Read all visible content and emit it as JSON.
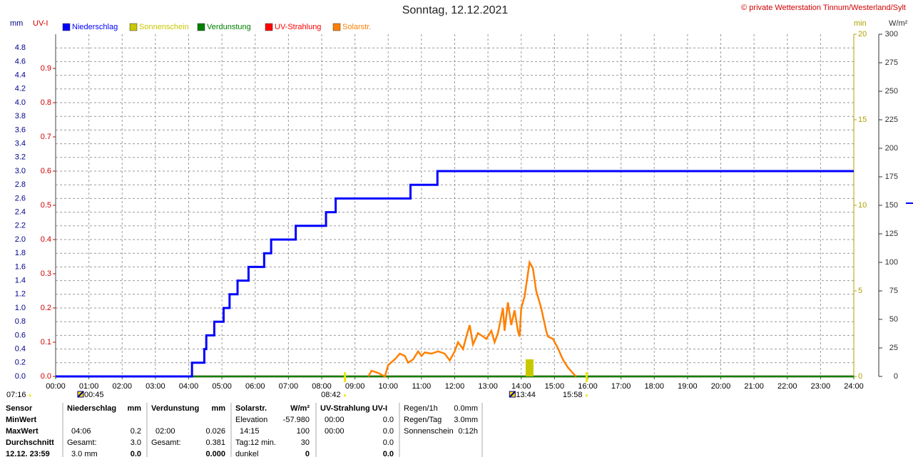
{
  "chart_data": {
    "type": "line",
    "title": "Sonntag, 12.12.2021",
    "copyright": "© private Wetterstation Tinnum/Westerland/Sylt",
    "xlim": [
      0,
      24
    ],
    "xticks": [
      {
        "value": 0,
        "label": "00:00"
      },
      {
        "value": 1,
        "label": "01:00"
      },
      {
        "value": 2,
        "label": "02:00"
      },
      {
        "value": 3,
        "label": "03:00"
      },
      {
        "value": 4,
        "label": "04:00"
      },
      {
        "value": 5,
        "label": "05:00"
      },
      {
        "value": 6,
        "label": "06:00"
      },
      {
        "value": 7,
        "label": "07:00"
      },
      {
        "value": 8,
        "label": "08:00"
      },
      {
        "value": 9,
        "label": "09:00"
      },
      {
        "value": 10,
        "label": "10:00"
      },
      {
        "value": 11,
        "label": "11:00"
      },
      {
        "value": 12,
        "label": "12:00"
      },
      {
        "value": 13,
        "label": "13:00"
      },
      {
        "value": 14,
        "label": "14:00"
      },
      {
        "value": 15,
        "label": "15:00"
      },
      {
        "value": 16,
        "label": "16:00"
      },
      {
        "value": 17,
        "label": "17:00"
      },
      {
        "value": 18,
        "label": "18:00"
      },
      {
        "value": 19,
        "label": "19:00"
      },
      {
        "value": 20,
        "label": "20:00"
      },
      {
        "value": 21,
        "label": "21:00"
      },
      {
        "value": 22,
        "label": "22:00"
      },
      {
        "value": 23,
        "label": "23:00"
      },
      {
        "value": 24,
        "label": "24:00"
      }
    ],
    "ylabel": "mm",
    "ylim": [
      0,
      5
    ],
    "yticks": [
      {
        "value": 0,
        "label": "0.0"
      },
      0.2,
      0.4,
      0.6,
      0.8,
      {
        "value": 1,
        "label": "1.0"
      },
      1.2,
      1.4,
      1.6,
      1.8,
      {
        "value": 2,
        "label": "2.0"
      },
      2.2,
      2.4,
      2.6,
      2.8,
      {
        "value": 3,
        "label": "3.0"
      },
      3.2,
      3.4,
      3.6,
      3.8,
      {
        "value": 4,
        "label": "4.0"
      },
      4.2,
      4.4,
      4.6,
      4.8
    ],
    "y2label": "UV-I",
    "y2lim": [
      0,
      1
    ],
    "y2ticks": [
      {
        "value": 0,
        "label": "0.0"
      },
      0.1,
      0.2,
      0.3,
      0.4,
      0.5,
      0.6,
      0.7,
      0.8,
      0.9
    ],
    "y3label": "min",
    "y3lim": [
      0,
      20
    ],
    "y3ticks": [
      0,
      5,
      10,
      15,
      20
    ],
    "y4label": "W/m²",
    "y4lim": [
      0,
      300
    ],
    "y4ticks": [
      0,
      25,
      50,
      75,
      100,
      125,
      150,
      175,
      200,
      225,
      250,
      275,
      300
    ],
    "grid": true,
    "series": [
      {
        "name": "Niederschlag",
        "color": "#0000ff",
        "axis": "y",
        "x": [
          0,
          4.1,
          4.1,
          4.47,
          4.47,
          4.53,
          4.53,
          4.77,
          4.77,
          5.05,
          5.05,
          5.23,
          5.23,
          5.47,
          5.47,
          5.8,
          5.8,
          6.27,
          6.27,
          6.48,
          6.48,
          7.22,
          7.22,
          8.13,
          8.13,
          8.42,
          8.42,
          10.67,
          10.67,
          11.48,
          11.48,
          24
        ],
        "values": [
          0,
          0,
          0.2,
          0.2,
          0.4,
          0.4,
          0.6,
          0.6,
          0.8,
          0.8,
          1.0,
          1.0,
          1.2,
          1.2,
          1.4,
          1.4,
          1.6,
          1.6,
          1.8,
          1.8,
          2.0,
          2.0,
          2.2,
          2.2,
          2.4,
          2.4,
          2.6,
          2.6,
          2.8,
          2.8,
          3.0,
          3.0
        ]
      },
      {
        "name": "Sonnenschein",
        "color": "#c8c800",
        "axis": "y3",
        "type": "bar",
        "x": [
          14.25
        ],
        "values": [
          1
        ]
      },
      {
        "name": "Verdunstung",
        "color": "#008000",
        "axis": "y",
        "x": [
          0,
          24
        ],
        "values": [
          0,
          0
        ]
      },
      {
        "name": "UV-Strahlung",
        "color": "#ff0000",
        "axis": "y2",
        "x": [
          0,
          24
        ],
        "values": [
          0,
          0
        ]
      },
      {
        "name": "Solarstr.",
        "color": "#ff8000",
        "axis": "y4",
        "x": [
          9.4,
          9.5,
          9.7,
          9.9,
          10.0,
          10.2,
          10.35,
          10.5,
          10.6,
          10.75,
          10.9,
          11.0,
          11.1,
          11.3,
          11.5,
          11.7,
          11.85,
          12.0,
          12.1,
          12.25,
          12.35,
          12.45,
          12.55,
          12.7,
          12.85,
          12.95,
          13.1,
          13.2,
          13.3,
          13.45,
          13.5,
          13.6,
          13.7,
          13.8,
          13.9,
          13.95,
          14.0,
          14.1,
          14.2,
          14.25,
          14.35,
          14.45,
          14.6,
          14.75,
          14.8,
          14.95,
          15.1,
          15.25,
          15.4,
          15.55,
          15.65
        ],
        "values": [
          0,
          5,
          3,
          0,
          10,
          15,
          20,
          18,
          12,
          15,
          22,
          18,
          21,
          20,
          22,
          20,
          14,
          22,
          30,
          24,
          35,
          45,
          28,
          38,
          35,
          33,
          40,
          30,
          38,
          60,
          40,
          65,
          45,
          58,
          40,
          35,
          60,
          70,
          90,
          100,
          95,
          75,
          60,
          40,
          35,
          33,
          25,
          15,
          8,
          3,
          0
        ]
      }
    ],
    "markers": {
      "day_length": "07:16",
      "sun": [
        "08:42",
        "15:58"
      ],
      "moon": [
        "00:45",
        "13:44"
      ]
    }
  },
  "table": {
    "columns": [
      {
        "header": "Sensor",
        "rows": [
          [
            "MinWert",
            null
          ],
          [
            "MaxWert",
            null
          ],
          [
            "Durchschnitt",
            null
          ],
          [
            "12.12. 23:59",
            null
          ]
        ]
      },
      {
        "header": "Niederschlag",
        "unit": "mm",
        "rows": [
          [
            null,
            null
          ],
          [
            "04:06",
            "0.2"
          ],
          [
            "Gesamt:",
            "3.0"
          ],
          [
            "3.0 mm",
            "0.0"
          ]
        ]
      },
      {
        "header": "Verdunstung",
        "unit": "mm",
        "rows": [
          [
            null,
            null
          ],
          [
            "02:00",
            "0.026"
          ],
          [
            "Gesamt:",
            "0.381"
          ],
          [
            null,
            "0.000"
          ]
        ]
      },
      {
        "header": "Solarstr.",
        "unit": "W/m²",
        "rows": [
          [
            "Elevation",
            "-57.980"
          ],
          [
            "14:15",
            "100"
          ],
          [
            "Tag:12 min.",
            "30"
          ],
          [
            "dunkel",
            "0"
          ]
        ]
      },
      {
        "header": "UV-Strahlung UV-I",
        "rows": [
          [
            "00:00",
            "0.0"
          ],
          [
            "00:00",
            "0.0"
          ],
          [
            null,
            "0.0"
          ],
          [
            null,
            "0.0"
          ]
        ]
      },
      {
        "header": "Regen/1h",
        "unit": "0.0mm",
        "rows": [
          [
            "Regen/Tag",
            "3.0mm"
          ],
          [
            "Sonnenschein",
            "0:12h"
          ]
        ]
      }
    ]
  }
}
